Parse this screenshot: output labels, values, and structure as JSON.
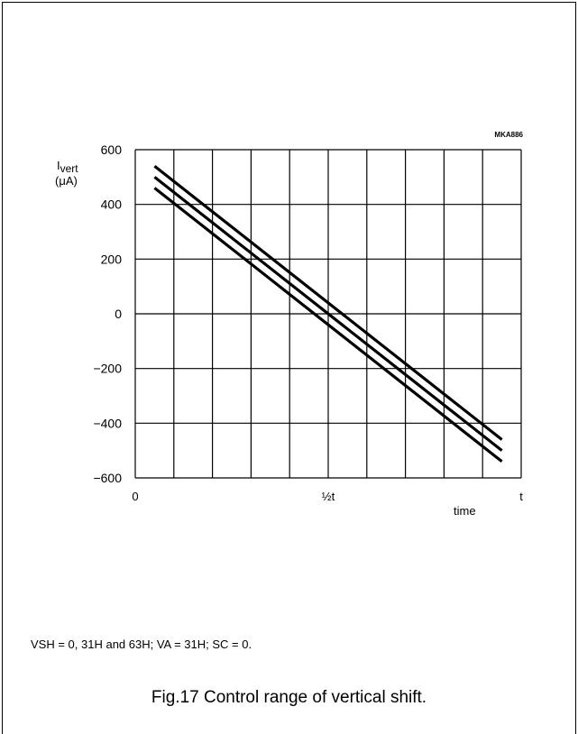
{
  "chart_data": {
    "type": "line",
    "code": "MKA886",
    "ylabel_main": "I",
    "ylabel_sub": "vert",
    "yunit": "(μA)",
    "xlabel": "time",
    "ylim": [
      -600,
      600
    ],
    "yticks": [
      600,
      400,
      200,
      0,
      -200,
      -400,
      -600
    ],
    "ytick_labels": [
      "600",
      "400",
      "200",
      "0",
      "−200",
      "−400",
      "−600"
    ],
    "xlim": [
      0,
      1
    ],
    "xtick_labels": [
      {
        "x": 0,
        "label": "0"
      },
      {
        "x": 0.5,
        "label": "½t"
      },
      {
        "x": 1,
        "label": "t"
      }
    ],
    "grid": true,
    "series": [
      {
        "x": [
          0.05,
          0.95
        ],
        "y": [
          540,
          -460
        ]
      },
      {
        "x": [
          0.05,
          0.95
        ],
        "y": [
          500,
          -500
        ]
      },
      {
        "x": [
          0.05,
          0.95
        ],
        "y": [
          460,
          -540
        ]
      }
    ]
  },
  "note": "VSH = 0, 31H and 63H; VA = 31H; SC = 0.",
  "caption": "Fig.17  Control range of vertical shift."
}
